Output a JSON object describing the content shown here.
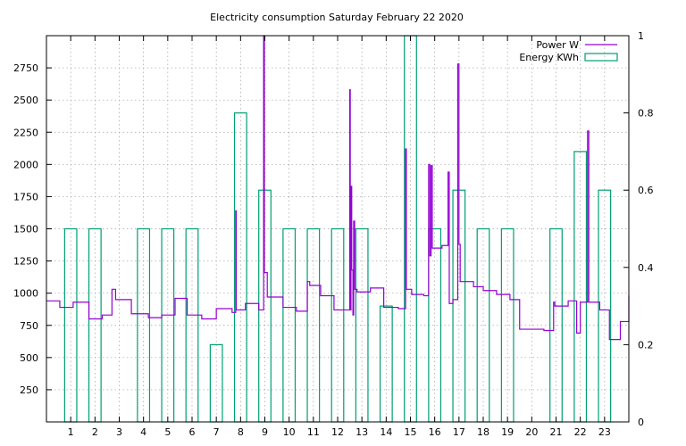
{
  "chart_data": {
    "type": "line",
    "title": "Electricity consumption Saturday February 22 2020",
    "xlabel": "",
    "ylabel": "",
    "x_range": [
      0,
      24
    ],
    "y_range": [
      0,
      3000
    ],
    "y2_range": [
      0,
      1
    ],
    "x_tick_labels": [
      "1",
      "2",
      "3",
      "4",
      "5",
      "6",
      "7",
      "8",
      "9",
      "10",
      "11",
      "12",
      "13",
      "14",
      "15",
      "16",
      "17",
      "18",
      "19",
      "20",
      "21",
      "22",
      "23"
    ],
    "y_tick_labels": [
      "250",
      "500",
      "750",
      "1000",
      "1250",
      "1500",
      "1750",
      "2000",
      "2250",
      "2500",
      "2750"
    ],
    "y2_tick_labels": [
      "0",
      "0.2",
      "0.4",
      "0.6",
      "0.8",
      "1"
    ],
    "grid": true,
    "legend_position": "top-right",
    "colors": {
      "power": "#9400d3",
      "energy": "#009e73"
    },
    "series": [
      {
        "name": "Power W",
        "axis": "left",
        "style": "steps",
        "points": [
          [
            0.0,
            940
          ],
          [
            0.55,
            890
          ],
          [
            1.1,
            930
          ],
          [
            1.75,
            800
          ],
          [
            2.3,
            830
          ],
          [
            2.7,
            1030
          ],
          [
            2.85,
            950
          ],
          [
            3.5,
            840
          ],
          [
            4.2,
            810
          ],
          [
            4.75,
            830
          ],
          [
            5.3,
            960
          ],
          [
            5.8,
            830
          ],
          [
            6.4,
            800
          ],
          [
            7.0,
            880
          ],
          [
            7.65,
            850
          ],
          [
            7.8,
            1640
          ],
          [
            7.82,
            870
          ],
          [
            8.2,
            920
          ],
          [
            8.75,
            870
          ],
          [
            8.95,
            3000
          ],
          [
            8.98,
            1160
          ],
          [
            9.1,
            970
          ],
          [
            9.75,
            890
          ],
          [
            10.3,
            860
          ],
          [
            10.75,
            1090
          ],
          [
            10.85,
            1060
          ],
          [
            11.3,
            980
          ],
          [
            11.85,
            870
          ],
          [
            12.5,
            2580
          ],
          [
            12.52,
            870
          ],
          [
            12.55,
            1830
          ],
          [
            12.58,
            1180
          ],
          [
            12.63,
            830
          ],
          [
            12.66,
            1560
          ],
          [
            12.7,
            1030
          ],
          [
            12.8,
            1010
          ],
          [
            13.35,
            1040
          ],
          [
            13.9,
            890
          ],
          [
            14.5,
            880
          ],
          [
            14.8,
            2120
          ],
          [
            14.83,
            1030
          ],
          [
            15.05,
            990
          ],
          [
            15.55,
            980
          ],
          [
            15.75,
            2000
          ],
          [
            15.8,
            1290
          ],
          [
            15.85,
            1990
          ],
          [
            15.9,
            1350
          ],
          [
            16.3,
            1370
          ],
          [
            16.55,
            1940
          ],
          [
            16.6,
            920
          ],
          [
            16.75,
            950
          ],
          [
            16.95,
            2780
          ],
          [
            17.0,
            1380
          ],
          [
            17.05,
            1090
          ],
          [
            17.6,
            1050
          ],
          [
            18.0,
            1020
          ],
          [
            18.55,
            990
          ],
          [
            19.1,
            950
          ],
          [
            19.5,
            720
          ],
          [
            20.5,
            710
          ],
          [
            20.9,
            930
          ],
          [
            20.95,
            900
          ],
          [
            21.5,
            940
          ],
          [
            21.85,
            690
          ],
          [
            22.0,
            930
          ],
          [
            22.3,
            2260
          ],
          [
            22.35,
            930
          ],
          [
            22.8,
            870
          ],
          [
            23.2,
            640
          ],
          [
            23.65,
            780
          ],
          [
            24.0,
            980
          ]
        ]
      },
      {
        "name": "Energy KWh",
        "axis": "right",
        "style": "boxes",
        "bars": [
          {
            "x": 1,
            "value": 0.5
          },
          {
            "x": 2,
            "value": 0.5
          },
          {
            "x": 4,
            "value": 0.5
          },
          {
            "x": 5,
            "value": 0.5
          },
          {
            "x": 6,
            "value": 0.5
          },
          {
            "x": 7,
            "value": 0.2
          },
          {
            "x": 8,
            "value": 0.8
          },
          {
            "x": 9,
            "value": 0.6
          },
          {
            "x": 10,
            "value": 0.5
          },
          {
            "x": 11,
            "value": 0.5
          },
          {
            "x": 12,
            "value": 0.5
          },
          {
            "x": 13,
            "value": 0.5
          },
          {
            "x": 14,
            "value": 0.3
          },
          {
            "x": 15,
            "value": 1.0
          },
          {
            "x": 16,
            "value": 0.5
          },
          {
            "x": 17,
            "value": 0.6
          },
          {
            "x": 18,
            "value": 0.5
          },
          {
            "x": 19,
            "value": 0.5
          },
          {
            "x": 21,
            "value": 0.5
          },
          {
            "x": 22,
            "value": 0.7
          },
          {
            "x": 23,
            "value": 0.6
          }
        ]
      }
    ]
  }
}
